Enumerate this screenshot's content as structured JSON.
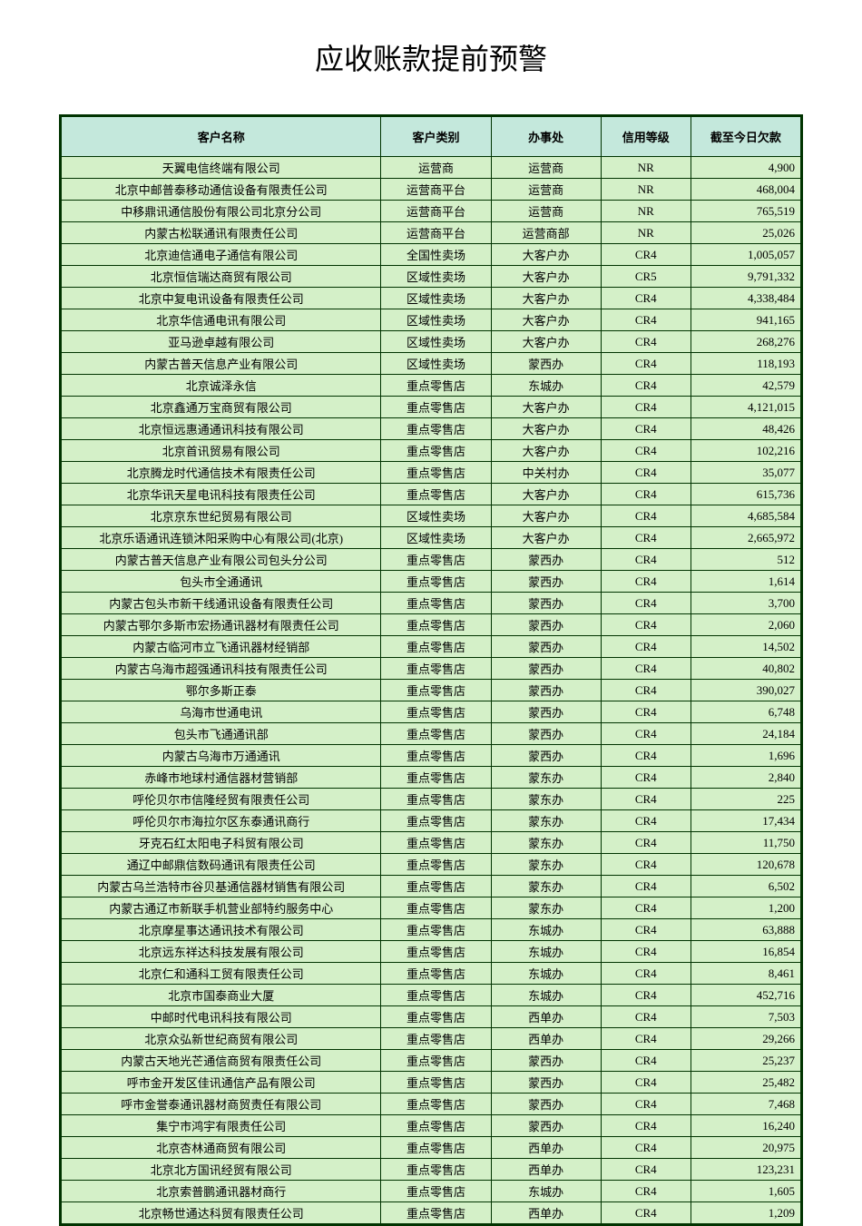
{
  "title": "应收账款提前预警",
  "columns": [
    "客户名称",
    "客户类别",
    "办事处",
    "信用等级",
    "截至今日欠款"
  ],
  "colors": {
    "header_bg": "#c4e8dc",
    "row_bg": "#d4f0c8",
    "border": "#003300",
    "page_bg": "#ffffff"
  },
  "rows": [
    {
      "name": "天翼电信终端有限公司",
      "cat": "运营商",
      "office": "运营商",
      "credit": "NR",
      "amt": "4,900"
    },
    {
      "name": "北京中邮普泰移动通信设备有限责任公司",
      "cat": "运营商平台",
      "office": "运营商",
      "credit": "NR",
      "amt": "468,004"
    },
    {
      "name": "中移鼎讯通信股份有限公司北京分公司",
      "cat": "运营商平台",
      "office": "运营商",
      "credit": "NR",
      "amt": "765,519"
    },
    {
      "name": "内蒙古松联通讯有限责任公司",
      "cat": "运营商平台",
      "office": "运营商部",
      "credit": "NR",
      "amt": "25,026"
    },
    {
      "name": "北京迪信通电子通信有限公司",
      "cat": "全国性卖场",
      "office": "大客户办",
      "credit": "CR4",
      "amt": "1,005,057"
    },
    {
      "name": "北京恒信瑞达商贸有限公司",
      "cat": "区域性卖场",
      "office": "大客户办",
      "credit": "CR5",
      "amt": "9,791,332"
    },
    {
      "name": "北京中复电讯设备有限责任公司",
      "cat": "区域性卖场",
      "office": "大客户办",
      "credit": "CR4",
      "amt": "4,338,484"
    },
    {
      "name": "北京华信通电讯有限公司",
      "cat": "区域性卖场",
      "office": "大客户办",
      "credit": "CR4",
      "amt": "941,165"
    },
    {
      "name": "亚马逊卓越有限公司",
      "cat": "区域性卖场",
      "office": "大客户办",
      "credit": "CR4",
      "amt": "268,276"
    },
    {
      "name": "内蒙古普天信息产业有限公司",
      "cat": "区域性卖场",
      "office": "蒙西办",
      "credit": "CR4",
      "amt": "118,193"
    },
    {
      "name": "北京诚泽永信",
      "cat": "重点零售店",
      "office": "东城办",
      "credit": "CR4",
      "amt": "42,579"
    },
    {
      "name": "北京鑫通万宝商贸有限公司",
      "cat": "重点零售店",
      "office": "大客户办",
      "credit": "CR4",
      "amt": "4,121,015"
    },
    {
      "name": "北京恒远惠通通讯科技有限公司",
      "cat": "重点零售店",
      "office": "大客户办",
      "credit": "CR4",
      "amt": "48,426"
    },
    {
      "name": "北京首讯贸易有限公司",
      "cat": "重点零售店",
      "office": "大客户办",
      "credit": "CR4",
      "amt": "102,216"
    },
    {
      "name": "北京腾龙时代通信技术有限责任公司",
      "cat": "重点零售店",
      "office": "中关村办",
      "credit": "CR4",
      "amt": "35,077"
    },
    {
      "name": "北京华讯天星电讯科技有限责任公司",
      "cat": "重点零售店",
      "office": "大客户办",
      "credit": "CR4",
      "amt": "615,736"
    },
    {
      "name": "北京京东世纪贸易有限公司",
      "cat": "区域性卖场",
      "office": "大客户办",
      "credit": "CR4",
      "amt": "4,685,584"
    },
    {
      "name": "北京乐语通讯连锁沐阳采购中心有限公司(北京)",
      "cat": "区域性卖场",
      "office": "大客户办",
      "credit": "CR4",
      "amt": "2,665,972"
    },
    {
      "name": "内蒙古普天信息产业有限公司包头分公司",
      "cat": "重点零售店",
      "office": "蒙西办",
      "credit": "CR4",
      "amt": "512"
    },
    {
      "name": "包头市全通通讯",
      "cat": "重点零售店",
      "office": "蒙西办",
      "credit": "CR4",
      "amt": "1,614"
    },
    {
      "name": "内蒙古包头市新干线通讯设备有限责任公司",
      "cat": "重点零售店",
      "office": "蒙西办",
      "credit": "CR4",
      "amt": "3,700"
    },
    {
      "name": "内蒙古鄂尔多斯市宏扬通讯器材有限责任公司",
      "cat": "重点零售店",
      "office": "蒙西办",
      "credit": "CR4",
      "amt": "2,060"
    },
    {
      "name": "内蒙古临河市立飞通讯器材经销部",
      "cat": "重点零售店",
      "office": "蒙西办",
      "credit": "CR4",
      "amt": "14,502"
    },
    {
      "name": "内蒙古乌海市超强通讯科技有限责任公司",
      "cat": "重点零售店",
      "office": "蒙西办",
      "credit": "CR4",
      "amt": "40,802"
    },
    {
      "name": "鄂尔多斯正泰",
      "cat": "重点零售店",
      "office": "蒙西办",
      "credit": "CR4",
      "amt": "390,027"
    },
    {
      "name": "乌海市世通电讯",
      "cat": "重点零售店",
      "office": "蒙西办",
      "credit": "CR4",
      "amt": "6,748"
    },
    {
      "name": "包头市飞通通讯部",
      "cat": "重点零售店",
      "office": "蒙西办",
      "credit": "CR4",
      "amt": "24,184"
    },
    {
      "name": "内蒙古乌海市万通通讯",
      "cat": "重点零售店",
      "office": "蒙西办",
      "credit": "CR4",
      "amt": "1,696"
    },
    {
      "name": "赤峰市地球村通信器材营销部",
      "cat": "重点零售店",
      "office": "蒙东办",
      "credit": "CR4",
      "amt": "2,840"
    },
    {
      "name": "呼伦贝尔市信隆经贸有限责任公司",
      "cat": "重点零售店",
      "office": "蒙东办",
      "credit": "CR4",
      "amt": "225"
    },
    {
      "name": "呼伦贝尔市海拉尔区东泰通讯商行",
      "cat": "重点零售店",
      "office": "蒙东办",
      "credit": "CR4",
      "amt": "17,434"
    },
    {
      "name": "牙克石红太阳电子科贸有限公司",
      "cat": "重点零售店",
      "office": "蒙东办",
      "credit": "CR4",
      "amt": "11,750"
    },
    {
      "name": "通辽中邮鼎信数码通讯有限责任公司",
      "cat": "重点零售店",
      "office": "蒙东办",
      "credit": "CR4",
      "amt": "120,678"
    },
    {
      "name": "内蒙古乌兰浩特市谷贝基通信器材销售有限公司",
      "cat": "重点零售店",
      "office": "蒙东办",
      "credit": "CR4",
      "amt": "6,502"
    },
    {
      "name": "内蒙古通辽市新联手机营业部特约服务中心",
      "cat": "重点零售店",
      "office": "蒙东办",
      "credit": "CR4",
      "amt": "1,200"
    },
    {
      "name": "北京摩星事达通讯技术有限公司",
      "cat": "重点零售店",
      "office": "东城办",
      "credit": "CR4",
      "amt": "63,888"
    },
    {
      "name": "北京远东祥达科技发展有限公司",
      "cat": "重点零售店",
      "office": "东城办",
      "credit": "CR4",
      "amt": "16,854"
    },
    {
      "name": "北京仁和通科工贸有限责任公司",
      "cat": "重点零售店",
      "office": "东城办",
      "credit": "CR4",
      "amt": "8,461"
    },
    {
      "name": "北京市国泰商业大厦",
      "cat": "重点零售店",
      "office": "东城办",
      "credit": "CR4",
      "amt": "452,716"
    },
    {
      "name": "中邮时代电讯科技有限公司",
      "cat": "重点零售店",
      "office": "西单办",
      "credit": "CR4",
      "amt": "7,503"
    },
    {
      "name": "北京众弘新世纪商贸有限公司",
      "cat": "重点零售店",
      "office": "西单办",
      "credit": "CR4",
      "amt": "29,266"
    },
    {
      "name": "内蒙古天地光芒通信商贸有限责任公司",
      "cat": "重点零售店",
      "office": "蒙西办",
      "credit": "CR4",
      "amt": "25,237"
    },
    {
      "name": "呼市金开发区佳讯通信产品有限公司",
      "cat": "重点零售店",
      "office": "蒙西办",
      "credit": "CR4",
      "amt": "25,482"
    },
    {
      "name": "呼市金誉泰通讯器材商贸责任有限公司",
      "cat": "重点零售店",
      "office": "蒙西办",
      "credit": "CR4",
      "amt": "7,468"
    },
    {
      "name": "集宁市鸿宇有限责任公司",
      "cat": "重点零售店",
      "office": "蒙西办",
      "credit": "CR4",
      "amt": "16,240"
    },
    {
      "name": "北京杏林通商贸有限公司",
      "cat": "重点零售店",
      "office": "西单办",
      "credit": "CR4",
      "amt": "20,975"
    },
    {
      "name": "北京北方国讯经贸有限公司",
      "cat": "重点零售店",
      "office": "西单办",
      "credit": "CR4",
      "amt": "123,231"
    },
    {
      "name": "北京索普鹏通讯器材商行",
      "cat": "重点零售店",
      "office": "东城办",
      "credit": "CR4",
      "amt": "1,605"
    },
    {
      "name": "北京畅世通达科贸有限责任公司",
      "cat": "重点零售店",
      "office": "西单办",
      "credit": "CR4",
      "amt": "1,209"
    }
  ]
}
